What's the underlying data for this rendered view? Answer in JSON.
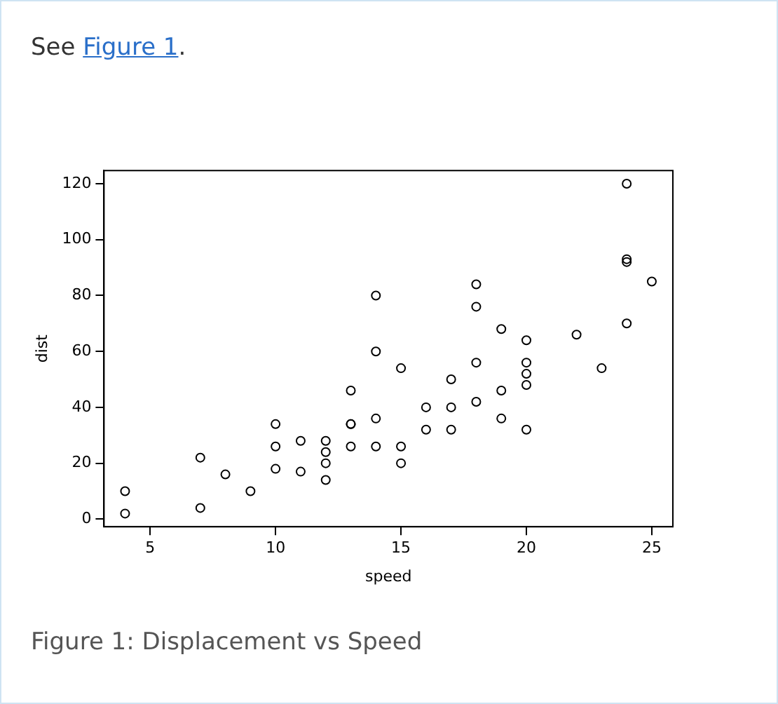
{
  "chart_data": {
    "type": "scatter",
    "xlabel": "speed",
    "ylabel": "dist",
    "annotations": [
      "See Figure 1.",
      "Figure 1: Displacement vs Speed"
    ],
    "x": [
      4,
      4,
      7,
      7,
      8,
      9,
      10,
      10,
      10,
      11,
      11,
      12,
      12,
      12,
      12,
      13,
      13,
      13,
      13,
      14,
      14,
      14,
      14,
      15,
      15,
      15,
      16,
      16,
      17,
      17,
      17,
      18,
      18,
      18,
      18,
      19,
      19,
      19,
      20,
      20,
      20,
      20,
      20,
      22,
      23,
      24,
      24,
      24,
      24,
      25
    ],
    "series": [
      {
        "color": "#000000",
        "values": [
          2,
          10,
          4,
          22,
          16,
          10,
          18,
          26,
          34,
          17,
          28,
          14,
          20,
          24,
          28,
          26,
          34,
          34,
          46,
          26,
          36,
          60,
          80,
          20,
          26,
          54,
          32,
          40,
          32,
          40,
          50,
          42,
          56,
          76,
          84,
          36,
          46,
          68,
          32,
          48,
          52,
          56,
          64,
          66,
          54,
          70,
          92,
          93,
          120,
          85
        ]
      }
    ],
    "xlim": [
      3.16,
      25.84
    ],
    "ylim": [
      -2.72,
      124.72
    ],
    "xticks": [
      5,
      10,
      15,
      20,
      25
    ],
    "yticks": [
      0,
      20,
      40,
      60,
      80,
      100,
      120
    ],
    "grid": false,
    "legend": false,
    "marker": "circle"
  }
}
